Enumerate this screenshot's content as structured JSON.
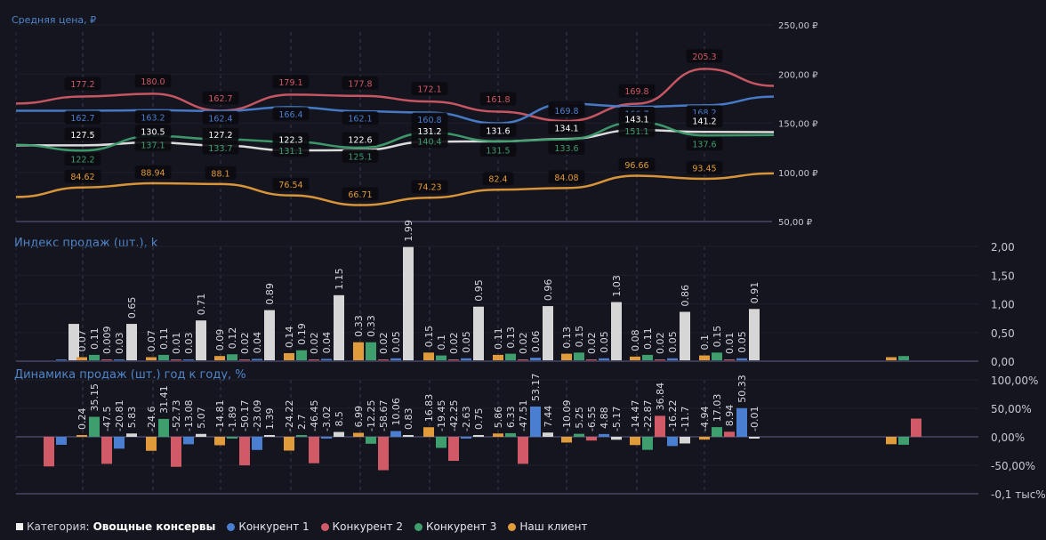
{
  "colors": {
    "competitor1": "#4a7fd0",
    "competitor2": "#d05a66",
    "competitor3": "#3e9e6e",
    "client": "#e29b3a",
    "category": "#e6e6e6",
    "title": "#4f86c9",
    "background": "#15151f"
  },
  "legend": {
    "category_label": "Категория:",
    "category_value": "Овощные консервы",
    "items": [
      {
        "name": "Конкурент 1",
        "key": "competitor1"
      },
      {
        "name": "Конкурент 2",
        "key": "competitor2"
      },
      {
        "name": "Конкурент 3",
        "key": "competitor3"
      },
      {
        "name": "Наш клиент",
        "key": "client"
      }
    ]
  },
  "chart_data": [
    {
      "type": "line",
      "title": "Средняя цена, ₽",
      "yticks": [
        "250,00 ₽",
        "200,00 ₽",
        "150,00 ₽",
        "100,00 ₽",
        "50,00 ₽"
      ],
      "ylim": [
        50,
        250
      ],
      "ytick_values": [
        250,
        200,
        150,
        100,
        50
      ],
      "periods": 11,
      "series": [
        {
          "name": "Конкурент 2",
          "key": "competitor2",
          "values": [
            170,
            177.2,
            180.0,
            162.7,
            179.1,
            177.8,
            172.1,
            161.8,
            152.2,
            169.8,
            205.3,
            188
          ],
          "labels": [
            null,
            "177.2",
            "180.0",
            "162.7",
            "179.1",
            "177.8",
            "172.1",
            "161.8",
            "152.2",
            "169.8",
            "205.3",
            null
          ]
        },
        {
          "name": "Конкурент 1",
          "key": "competitor1",
          "values": [
            162.7,
            162.7,
            163.2,
            162.4,
            166.4,
            162.1,
            160.8,
            149.9,
            169.8,
            166.7,
            168.2,
            177
          ],
          "labels": [
            null,
            "162.7",
            "163.2",
            "162.4",
            "166.4",
            "162.1",
            "160.8",
            "149.9",
            "169.8",
            "166.7",
            "168.2",
            null
          ]
        },
        {
          "name": "Категория",
          "key": "category",
          "values": [
            127.5,
            127.5,
            130.5,
            127.2,
            122.3,
            122.6,
            131.2,
            131.6,
            134.1,
            143.1,
            141.2,
            141
          ],
          "labels": [
            null,
            "127.5",
            "130.5",
            "127.2",
            "122.3",
            "122.6",
            "131.2",
            "131.6",
            "134.1",
            "143.1",
            "141.2",
            null
          ]
        },
        {
          "name": "Конкурент 3",
          "key": "competitor3",
          "values": [
            128,
            122.2,
            137.1,
            133.7,
            131.1,
            125.1,
            140.4,
            131.5,
            133.6,
            151.1,
            137.6,
            138
          ],
          "labels": [
            null,
            "122.2",
            "137.1",
            "133.7",
            "131.1",
            "125.1",
            "140.4",
            "131.5",
            "133.6",
            "151.1",
            "137.6",
            null
          ]
        },
        {
          "name": "Наш клиент",
          "key": "client",
          "values": [
            75,
            84.62,
            88.94,
            88.1,
            76.54,
            66.71,
            74.23,
            82.4,
            84.08,
            96.66,
            93.45,
            99
          ],
          "labels": [
            null,
            "84.62",
            "88.94",
            "88.1",
            "76.54",
            "66.71",
            "74.23",
            "82.4",
            "84.08",
            "96.66",
            "93.45",
            null
          ]
        }
      ]
    },
    {
      "type": "bar",
      "title": "Индекс продаж (шт.), k",
      "yticks": [
        "2,00",
        "1,50",
        "1,00",
        "0,50",
        "0,00"
      ],
      "ytick_values": [
        2.0,
        1.5,
        1.0,
        0.5,
        0.0
      ],
      "ylim": [
        0,
        2
      ],
      "series_order": [
        "client",
        "competitor3",
        "competitor2",
        "competitor1",
        "category"
      ],
      "groups": [
        {
          "values": [
            null,
            null,
            null,
            0.02,
            0.65
          ],
          "labels": [
            null,
            null,
            null,
            null,
            null
          ]
        },
        {
          "values": [
            0.07,
            0.11,
            0.009,
            0.03,
            0.65
          ],
          "labels": [
            "0.07",
            "0.11",
            "0.009",
            "0.03",
            "0.65"
          ]
        },
        {
          "values": [
            0.07,
            0.11,
            0.01,
            0.03,
            0.71
          ],
          "labels": [
            "0.07",
            "0.11",
            "0.01",
            "0.03",
            "0.71"
          ]
        },
        {
          "values": [
            0.09,
            0.12,
            0.02,
            0.04,
            0.89
          ],
          "labels": [
            "0.09",
            "0.12",
            "0.02",
            "0.04",
            "0.89"
          ]
        },
        {
          "values": [
            0.14,
            0.19,
            0.02,
            0.04,
            1.15
          ],
          "labels": [
            "0.14",
            "0.19",
            "0.02",
            "0.04",
            "1.15"
          ]
        },
        {
          "values": [
            0.33,
            0.33,
            0.02,
            0.05,
            1.99
          ],
          "labels": [
            "0.33",
            "0.33",
            "0.02",
            "0.05",
            "1.99"
          ]
        },
        {
          "values": [
            0.15,
            0.1,
            0.02,
            0.05,
            0.95
          ],
          "labels": [
            "0.15",
            "0.1",
            "0.02",
            "0.05",
            "0.95"
          ]
        },
        {
          "values": [
            0.11,
            0.13,
            0.02,
            0.06,
            0.96
          ],
          "labels": [
            "0.11",
            "0.13",
            "0.02",
            "0.06",
            "0.96"
          ]
        },
        {
          "values": [
            0.13,
            0.15,
            0.02,
            0.05,
            1.03
          ],
          "labels": [
            "0.13",
            "0.15",
            "0.02",
            "0.05",
            "1.03"
          ]
        },
        {
          "values": [
            0.08,
            0.11,
            0.02,
            0.05,
            0.86
          ],
          "labels": [
            "0.08",
            "0.11",
            "0.02",
            "0.05",
            "0.86"
          ]
        },
        {
          "values": [
            0.1,
            0.15,
            0.01,
            0.05,
            0.91
          ],
          "labels": [
            "0.1",
            "0.15",
            "0.01",
            "0.05",
            "0.91"
          ]
        },
        {
          "values": [
            0.07,
            0.09,
            null,
            null,
            null
          ],
          "labels": [
            null,
            null,
            null,
            null,
            null
          ]
        }
      ]
    },
    {
      "type": "bar",
      "title": "Динамика продаж (шт.) год к году, %",
      "yticks": [
        "100,00%",
        "50,00%",
        "0,00%",
        "-50,00%",
        "-0,1 тыс%"
      ],
      "ytick_values": [
        100,
        50,
        0,
        -50,
        -100
      ],
      "ylim": [
        -100,
        100
      ],
      "series_order": [
        "client",
        "competitor3",
        "competitor2",
        "competitor1",
        "category"
      ],
      "groups": [
        {
          "values": [
            null,
            null,
            -52,
            -14,
            null
          ],
          "labels": [
            null,
            null,
            null,
            null,
            null
          ]
        },
        {
          "values": [
            0.24,
            35.15,
            -47.5,
            -20.81,
            5.83
          ],
          "labels": [
            "0.24",
            "35.15",
            "-47.5",
            "-20.81",
            "5.83"
          ]
        },
        {
          "values": [
            -24.6,
            31.41,
            -52.73,
            -13.08,
            5.07
          ],
          "labels": [
            "-24.6",
            "31.41",
            "-52.73",
            "-13.08",
            "5.07"
          ]
        },
        {
          "values": [
            -14.81,
            -1.89,
            -50.17,
            -23.09,
            1.39
          ],
          "labels": [
            "-14.81",
            "-1.89",
            "-50.17",
            "-23.09",
            "1.39"
          ]
        },
        {
          "values": [
            -24.22,
            2.7,
            -46.45,
            -3.02,
            8.5
          ],
          "labels": [
            "-24.22",
            "2.7",
            "-46.45",
            "-3.02",
            "8.5"
          ]
        },
        {
          "values": [
            6.99,
            -12.25,
            -58.67,
            10.06,
            0.83
          ],
          "labels": [
            "6.99",
            "-12.25",
            "-58.67",
            "10.06",
            "0.83"
          ]
        },
        {
          "values": [
            16.83,
            -19.45,
            -42.25,
            -2.63,
            0.75
          ],
          "labels": [
            "16.83",
            "-19.45",
            "-42.25",
            "-2.63",
            "0.75"
          ]
        },
        {
          "values": [
            5.86,
            6.33,
            -47.51,
            53.17,
            7.44
          ],
          "labels": [
            "5.86",
            "6.33",
            "-47.51",
            "53.17",
            "7.44"
          ]
        },
        {
          "values": [
            -10.09,
            5.25,
            -6.55,
            4.88,
            -5.17
          ],
          "labels": [
            "-10.09",
            "5.25",
            "-6.55",
            "4.88",
            "-5.17"
          ]
        },
        {
          "values": [
            -14.47,
            -22.87,
            36.84,
            -16.22,
            -11.7
          ],
          "labels": [
            "-14.47",
            "-22.87",
            "36.84",
            "-16.22",
            "-11.7"
          ]
        },
        {
          "values": [
            -4.94,
            17.03,
            8.94,
            50.33,
            -0.01
          ],
          "labels": [
            "-4.94",
            "17.03",
            "8.94",
            "50.33",
            "-0.01"
          ]
        },
        {
          "values": [
            -13,
            -14,
            32,
            null,
            null
          ],
          "labels": [
            null,
            null,
            null,
            null,
            null
          ]
        }
      ]
    }
  ],
  "titles": {
    "price": "Средняя цена, ₽",
    "sales_index": "Индекс продаж (шт.), k",
    "dynamics": "Динамика продаж (шт.) год к году, %"
  }
}
